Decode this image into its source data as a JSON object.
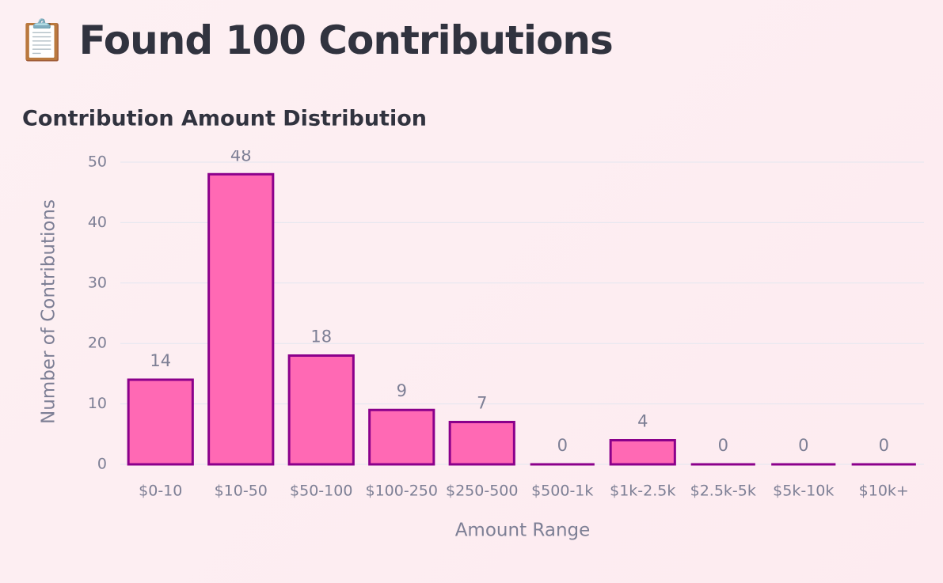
{
  "header": {
    "title": "📋 Found 100 Contributions"
  },
  "chart_data": {
    "type": "bar",
    "title": "Contribution Amount Distribution",
    "x_label": "Amount Range",
    "y_label": "Number of Contributions",
    "categories": [
      "$0-10",
      "$10-50",
      "$50-100",
      "$100-250",
      "$250-500",
      "$500-1k",
      "$1k-2.5k",
      "$2.5k-5k",
      "$5k-10k",
      "$10k+"
    ],
    "values": [
      14,
      48,
      18,
      9,
      7,
      0,
      4,
      0,
      0,
      0
    ],
    "color": "#ff69b4",
    "edge_color": "#8b008b",
    "ylim": [
      0,
      50
    ],
    "yticks": [
      0,
      10,
      20,
      30,
      40,
      50
    ],
    "grid": true,
    "show_values": true
  }
}
